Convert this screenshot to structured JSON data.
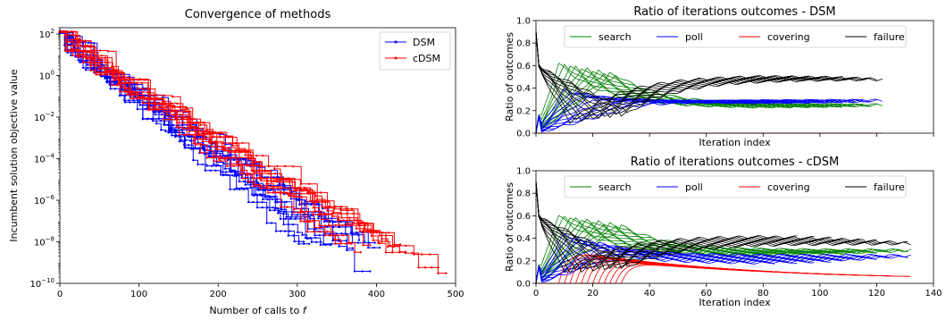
{
  "chart_data": [
    {
      "type": "line",
      "title": "Convergence of methods",
      "xlabel": "Number of calls to f",
      "xlabel_main": "Number of calls to ",
      "xlabel_var": "f",
      "ylabel": "Incumbent solution objective value",
      "xlim": [
        0,
        500
      ],
      "ylim": [
        1e-10,
        200
      ],
      "yscale": "log",
      "x_ticks": [
        0,
        100,
        200,
        300,
        400,
        500
      ],
      "y_ticks": [
        {
          "value": 1e-10,
          "base": "10",
          "exp": "−10"
        },
        {
          "value": 1e-08,
          "base": "10",
          "exp": "−8"
        },
        {
          "value": 1e-06,
          "base": "10",
          "exp": "−6"
        },
        {
          "value": 0.0001,
          "base": "10",
          "exp": "−4"
        },
        {
          "value": 0.01,
          "base": "10",
          "exp": "−2"
        },
        {
          "value": 1,
          "base": "10",
          "exp": "0"
        },
        {
          "value": 100,
          "base": "10",
          "exp": "2"
        }
      ],
      "legend_position": "top-right",
      "series": [
        {
          "name": "DSM",
          "color": "#0000ff",
          "final_x": [
            308,
            315,
            330,
            342,
            352,
            362,
            370,
            378,
            385,
            392,
            398,
            404
          ],
          "final_y": [
            1e-08,
            1.2e-08,
            1.5e-08,
            9e-09,
            1.1e-08,
            1.3e-08,
            8e-09,
            1.2e-08,
            1e-08,
            5e-10,
            9e-09,
            1e-08
          ]
        },
        {
          "name": "cDSM",
          "color": "#ff0000",
          "final_x": [
            355,
            368,
            380,
            392,
            402,
            412,
            420,
            430,
            437,
            478,
            488
          ],
          "final_y": [
            1e-08,
            1.2e-08,
            8e-09,
            1e-08,
            9e-09,
            1.1e-08,
            7e-09,
            1e-08,
            7e-09,
            8e-10,
            8e-10
          ]
        }
      ]
    },
    {
      "type": "line",
      "title": "Ratio of iterations outcomes - DSM",
      "xlabel": "Iteration index",
      "ylabel": "Ratio of outcomes",
      "xlim": [
        0,
        140
      ],
      "ylim": [
        0,
        1.0
      ],
      "y_ticks": [
        "0.0",
        "0.2",
        "0.4",
        "0.6",
        "0.8",
        "1.0"
      ],
      "legend_position": "top",
      "series": [
        {
          "name": "search",
          "color": "#008000",
          "final_value": 0.23
        },
        {
          "name": "poll",
          "color": "#0000ff",
          "final_value": 0.27
        },
        {
          "name": "covering",
          "color": "#ff0000",
          "final_value": 0.0
        },
        {
          "name": "failure",
          "color": "#000000",
          "final_value": 0.51
        }
      ],
      "run_lengths": [
        82,
        90,
        96,
        100,
        104,
        108,
        112,
        115,
        118,
        120,
        122
      ]
    },
    {
      "type": "line",
      "title": "Ratio of iterations outcomes - cDSM",
      "xlabel": "Iteration index",
      "ylabel": "Ratio of outcomes",
      "xlim": [
        0,
        140
      ],
      "ylim": [
        0,
        1.0
      ],
      "x_ticks": [
        0,
        20,
        40,
        60,
        80,
        100,
        120,
        140
      ],
      "y_ticks": [
        "0.0",
        "0.2",
        "0.4",
        "0.6",
        "0.8",
        "1.0"
      ],
      "legend_position": "top",
      "series": [
        {
          "name": "search",
          "color": "#008000",
          "final_value": 0.27
        },
        {
          "name": "poll",
          "color": "#0000ff",
          "final_value": 0.2
        },
        {
          "name": "covering",
          "color": "#ff0000",
          "final_value": 0.12
        },
        {
          "name": "failure",
          "color": "#000000",
          "final_value": 0.42
        }
      ],
      "run_lengths": [
        84,
        92,
        98,
        104,
        108,
        112,
        116,
        120,
        124,
        128,
        131,
        132
      ]
    }
  ]
}
